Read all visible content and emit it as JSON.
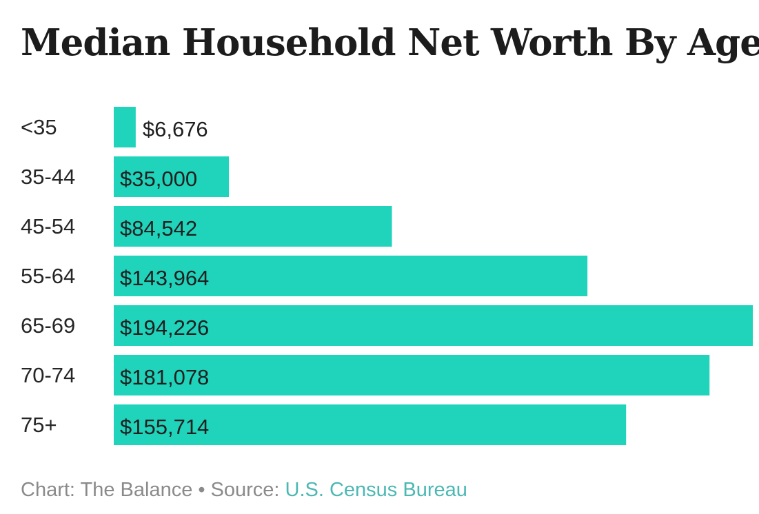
{
  "chart_data": {
    "type": "bar",
    "orientation": "horizontal",
    "title": "Median Household Net Worth By Age",
    "categories": [
      "<35",
      "35-44",
      "45-54",
      "55-64",
      "65-69",
      "70-74",
      "75+"
    ],
    "values": [
      6676,
      35000,
      84542,
      143964,
      194226,
      181078,
      155714
    ],
    "value_labels": [
      "$6,676",
      "$35,000",
      "$84,542",
      "$143,964",
      "$194,226",
      "$181,078",
      "$155,714"
    ],
    "xlabel": "",
    "ylabel": "",
    "xlim": [
      0,
      194226
    ],
    "grid": false,
    "bar_color": "#20d3bb"
  },
  "footer": {
    "chart_credit": "Chart: The Balance",
    "separator": "•",
    "source_prefix": "Source:",
    "source_name": "U.S. Census Bureau",
    "source_color": "#4bb8b3"
  }
}
